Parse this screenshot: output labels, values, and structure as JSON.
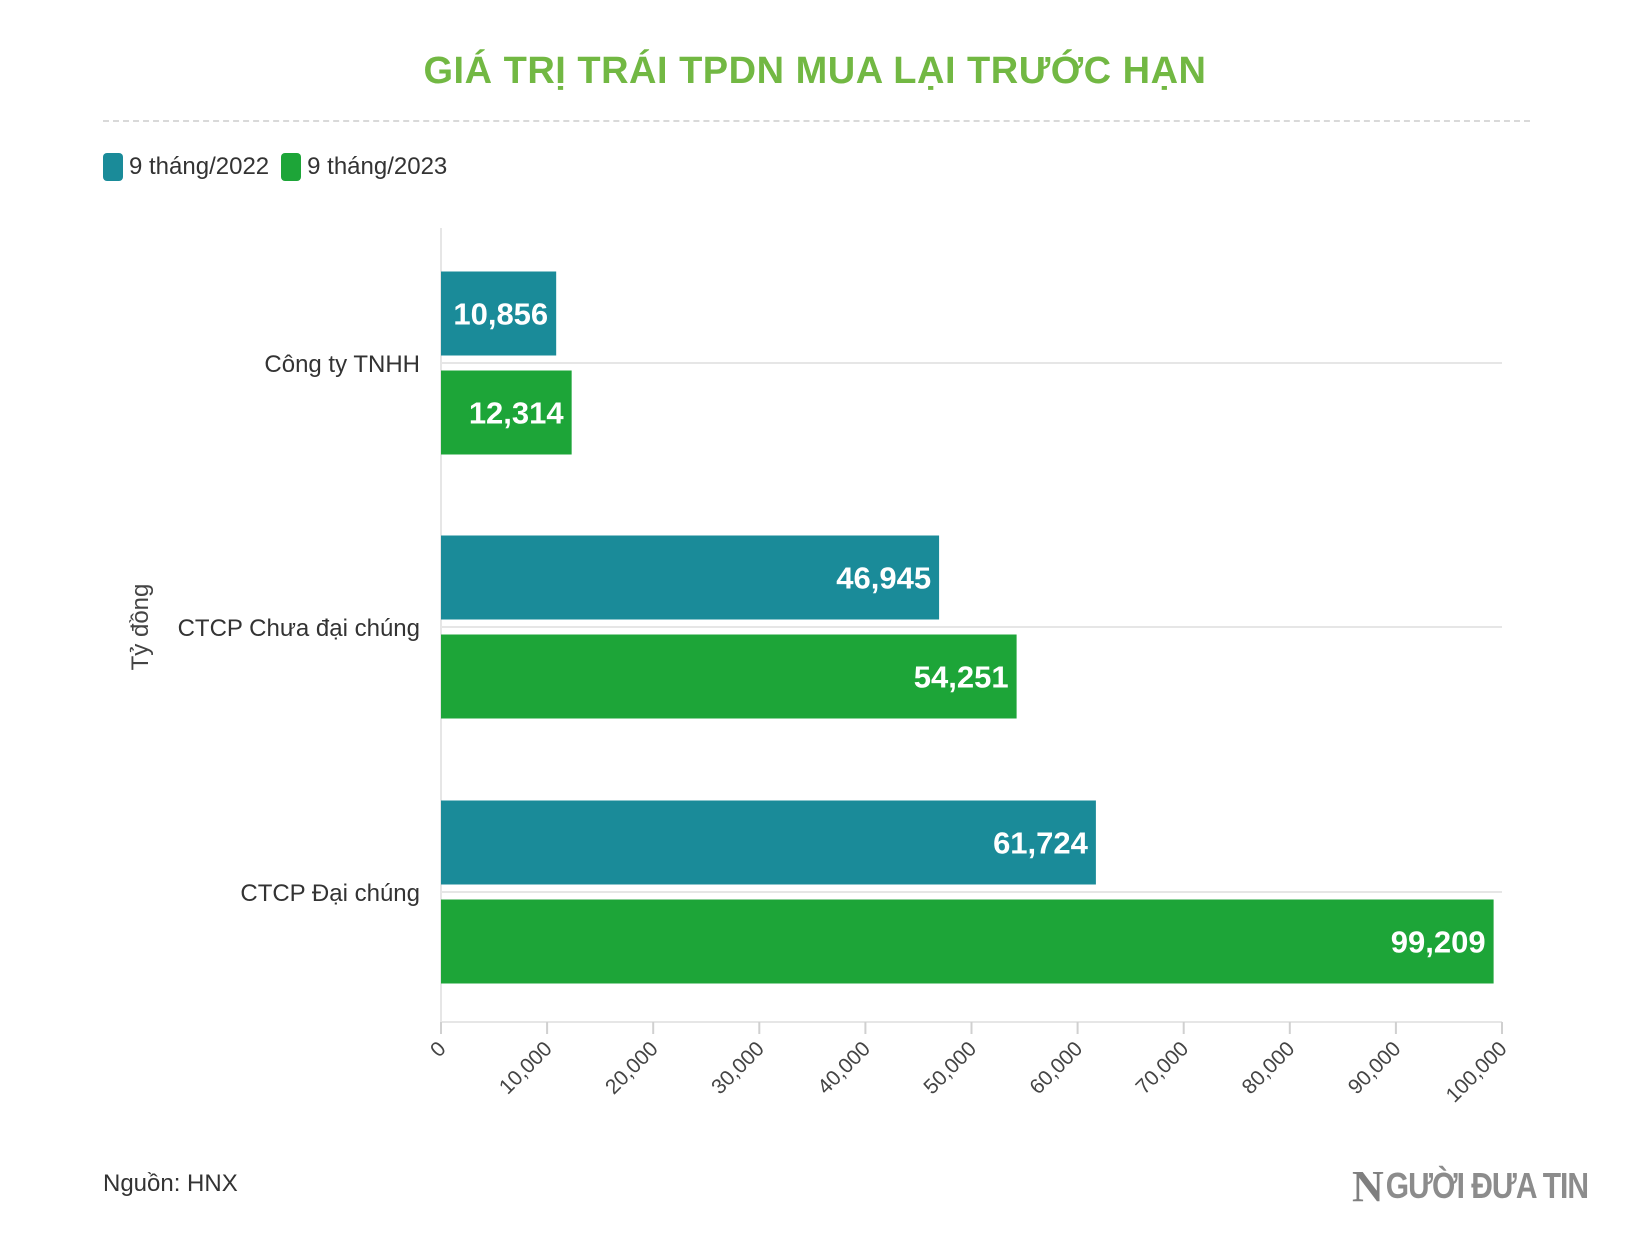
{
  "title": "GIÁ TRỊ TRÁI TPDN MUA LẠI TRƯỚC HẠN",
  "source": "Nguồn: HNX",
  "logo": {
    "mark": "N",
    "text": "GƯỜI ĐƯA TIN"
  },
  "colors": {
    "series_2022": "#1a8b99",
    "series_2023": "#1da538",
    "title": "#72b843"
  },
  "legend": [
    {
      "label": "9 tháng/2022",
      "color": "#1a8b99"
    },
    {
      "label": "9 tháng/2023",
      "color": "#1da538"
    }
  ],
  "chart_data": {
    "type": "bar",
    "orientation": "horizontal",
    "categories": [
      "Công ty TNHH",
      "CTCP Chưa đại chúng",
      "CTCP Đại chúng"
    ],
    "series": [
      {
        "name": "9 tháng/2022",
        "values": [
          10856,
          46945,
          61724
        ],
        "labels": [
          "10,856",
          "46,945",
          "61,724"
        ],
        "color": "#1a8b99"
      },
      {
        "name": "9 tháng/2023",
        "values": [
          12314,
          54251,
          99209
        ],
        "labels": [
          "12,314",
          "54,251",
          "99,209"
        ],
        "color": "#1da538"
      }
    ],
    "ylabel": "Tỷ đồng",
    "xlim": [
      0,
      100000
    ],
    "x_ticks": [
      "0",
      "10,000",
      "20,000",
      "30,000",
      "40,000",
      "50,000",
      "60,000",
      "70,000",
      "80,000",
      "90,000",
      "100,000"
    ],
    "legend_position": "top-left",
    "grid": true
  }
}
